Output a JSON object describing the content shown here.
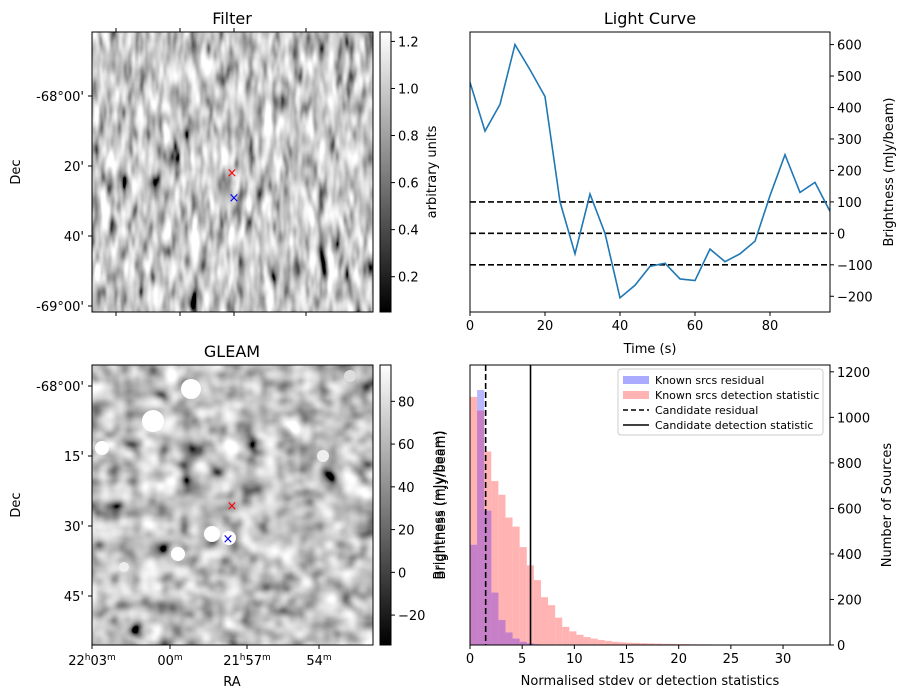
{
  "panels": {
    "filter": {
      "title": "Filter",
      "ylabel": "Dec",
      "yticks": [
        "-68°00'",
        "20'",
        "40'",
        "-69°00'"
      ],
      "colorbar": {
        "label": "arbitrary units",
        "ticks": [
          "0.2",
          "0.4",
          "0.6",
          "0.8",
          "1.0",
          "1.2"
        ],
        "range": [
          0.05,
          1.24
        ]
      }
    },
    "gleam": {
      "title": "GLEAM",
      "ylabel": "Dec",
      "xlabel": "RA",
      "yticks": [
        "-68°00'",
        "15'",
        "30'",
        "45'"
      ],
      "xticks": [
        {
          "main": "22",
          "h": "h",
          "mm": "03",
          "m": "m"
        },
        {
          "main": "00",
          "m": "m"
        },
        {
          "main": "21",
          "h": "h",
          "mm": "57",
          "m": "m"
        },
        {
          "main": "54",
          "m": "m"
        }
      ],
      "colorbar": {
        "label": "Brightness (mJy/beam)",
        "ticks": [
          "−20",
          "0",
          "20",
          "40",
          "60",
          "80"
        ],
        "range": [
          -34,
          97
        ]
      }
    }
  },
  "chart_data": [
    {
      "type": "line",
      "title": "Light Curve",
      "xlabel": "Time (s)",
      "ylabel": "Brightness (mJy/beam)",
      "xlim": [
        0,
        96
      ],
      "ylim": [
        -250,
        640
      ],
      "xticks": [
        0,
        20,
        40,
        60,
        80
      ],
      "yticks": [
        -200,
        -100,
        0,
        100,
        200,
        300,
        400,
        500,
        600
      ],
      "x": [
        0,
        4,
        8,
        12,
        16,
        20,
        24,
        28,
        32,
        36,
        40,
        44,
        48,
        52,
        56,
        60,
        64,
        68,
        72,
        76,
        80,
        84,
        88,
        92,
        96
      ],
      "y": [
        480,
        325,
        410,
        600,
        520,
        435,
        100,
        -65,
        125,
        0,
        -205,
        -165,
        -105,
        -95,
        -145,
        -150,
        -50,
        -90,
        -65,
        -25,
        120,
        250,
        130,
        162,
        70
      ],
      "hlines": [
        100,
        0,
        -100
      ],
      "color": "#1f77b4"
    },
    {
      "type": "histogram",
      "xlabel": "Normalised stdev or detection statistics",
      "ylabel_left": "Brightness (mJy/beam)",
      "ylabel_right": "Number of Sources",
      "xlim": [
        0,
        34.5
      ],
      "ylim": [
        0,
        1230
      ],
      "xticks": [
        0,
        5,
        10,
        15,
        20,
        25,
        30
      ],
      "yticks": [
        0,
        200,
        400,
        600,
        800,
        1000,
        1200
      ],
      "bin_width": 0.68,
      "series": [
        {
          "name": "Known srcs residual",
          "color": "#aaaaff",
          "values": [
            440,
            1120,
            590,
            230,
            110,
            55,
            28,
            14,
            7,
            3,
            2
          ]
        },
        {
          "name": "Known srcs detection statistic",
          "color": "#ffb3b3",
          "values": [
            1090,
            1030,
            850,
            720,
            660,
            560,
            520,
            430,
            350,
            285,
            210,
            175,
            120,
            80,
            60,
            45,
            35,
            28,
            22,
            18,
            14,
            12,
            10,
            9,
            8,
            7,
            6,
            5,
            5,
            4,
            4,
            3,
            3,
            3,
            2,
            2,
            2,
            2,
            2,
            2,
            1,
            1,
            1,
            1,
            1,
            1,
            1,
            1,
            1,
            1
          ]
        }
      ],
      "vlines": [
        {
          "name": "Candidate residual",
          "x": 1.5,
          "style": "dashed"
        },
        {
          "name": "Candidate detection statistic",
          "x": 5.8,
          "style": "solid"
        }
      ],
      "legend_position": "top-right"
    }
  ]
}
